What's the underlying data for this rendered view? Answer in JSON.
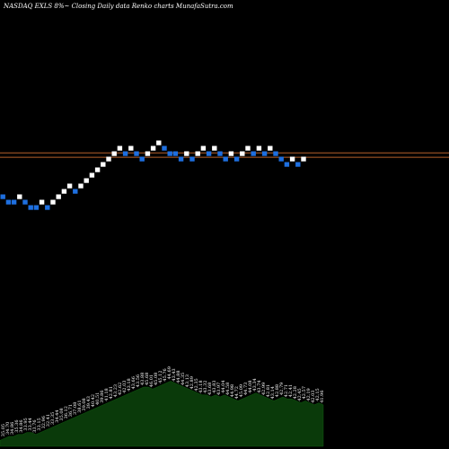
{
  "caption": "NASDAQ EXLS 8%~  Closing Daily data  Renko  charts MunafaSutra.com",
  "colors": {
    "background": "#000000",
    "up_brick": "#ffffff",
    "down_brick": "#1e6fe0",
    "reference_line": "#b5602a",
    "volume_fill": "#0a3a0a"
  },
  "chart_data": {
    "type": "renko",
    "bricks": [
      {
        "level": 0,
        "dir": "down"
      },
      {
        "level": -1,
        "dir": "down"
      },
      {
        "level": -1,
        "dir": "down"
      },
      {
        "level": 0,
        "dir": "up"
      },
      {
        "level": -1,
        "dir": "down"
      },
      {
        "level": -2,
        "dir": "down"
      },
      {
        "level": -2,
        "dir": "down"
      },
      {
        "level": -1,
        "dir": "up"
      },
      {
        "level": -2,
        "dir": "down"
      },
      {
        "level": -1,
        "dir": "up"
      },
      {
        "level": 0,
        "dir": "up"
      },
      {
        "level": 1,
        "dir": "up"
      },
      {
        "level": 2,
        "dir": "up"
      },
      {
        "level": 1,
        "dir": "down"
      },
      {
        "level": 2,
        "dir": "up"
      },
      {
        "level": 3,
        "dir": "up"
      },
      {
        "level": 4,
        "dir": "up"
      },
      {
        "level": 5,
        "dir": "up"
      },
      {
        "level": 6,
        "dir": "up"
      },
      {
        "level": 7,
        "dir": "up"
      },
      {
        "level": 8,
        "dir": "up"
      },
      {
        "level": 9,
        "dir": "up"
      },
      {
        "level": 8,
        "dir": "down"
      },
      {
        "level": 9,
        "dir": "up"
      },
      {
        "level": 8,
        "dir": "down"
      },
      {
        "level": 7,
        "dir": "down"
      },
      {
        "level": 8,
        "dir": "up"
      },
      {
        "level": 9,
        "dir": "up"
      },
      {
        "level": 10,
        "dir": "up"
      },
      {
        "level": 9,
        "dir": "down"
      },
      {
        "level": 8,
        "dir": "down"
      },
      {
        "level": 8,
        "dir": "down"
      },
      {
        "level": 7,
        "dir": "down"
      },
      {
        "level": 8,
        "dir": "up"
      },
      {
        "level": 7,
        "dir": "down"
      },
      {
        "level": 8,
        "dir": "up"
      },
      {
        "level": 9,
        "dir": "up"
      },
      {
        "level": 8,
        "dir": "down"
      },
      {
        "level": 9,
        "dir": "up"
      },
      {
        "level": 8,
        "dir": "down"
      },
      {
        "level": 7,
        "dir": "down"
      },
      {
        "level": 8,
        "dir": "up"
      },
      {
        "level": 7,
        "dir": "down"
      },
      {
        "level": 8,
        "dir": "up"
      },
      {
        "level": 9,
        "dir": "up"
      },
      {
        "level": 8,
        "dir": "down"
      },
      {
        "level": 9,
        "dir": "up"
      },
      {
        "level": 8,
        "dir": "down"
      },
      {
        "level": 9,
        "dir": "up"
      },
      {
        "level": 8,
        "dir": "down"
      },
      {
        "level": 7,
        "dir": "down"
      },
      {
        "level": 6,
        "dir": "down"
      },
      {
        "level": 7,
        "dir": "up"
      },
      {
        "level": 6,
        "dir": "down"
      },
      {
        "level": 7,
        "dir": "up"
      }
    ],
    "reference_lines": [
      8.2,
      7.4
    ],
    "volume": {
      "values": [
        3,
        4,
        5,
        5,
        6,
        6,
        7,
        7,
        6,
        7,
        8,
        9,
        10,
        11,
        12,
        13,
        14,
        15,
        16,
        17,
        18,
        19,
        20,
        21,
        22,
        23,
        24,
        25,
        26,
        27,
        28,
        29,
        30,
        30,
        29,
        30,
        31,
        32,
        33,
        32,
        31,
        30,
        29,
        28,
        27,
        26,
        26,
        25,
        26,
        25,
        26,
        25,
        24,
        23,
        24,
        25,
        26,
        27,
        26,
        25,
        24,
        23,
        24,
        25,
        24,
        24,
        23,
        22,
        23,
        22,
        21,
        22,
        21
      ],
      "labels": [
        "35.68",
        "35.05",
        "34.70",
        "34.86",
        "35.36",
        "34.86",
        "33.95",
        "33.44",
        "33.76",
        "33.15",
        "32.96",
        "32.41",
        "33.35",
        "34.44",
        "35.08",
        "36.12",
        "36.71",
        "37.08",
        "38.61",
        "39.08",
        "39.43",
        "40.42",
        "40.51",
        "39.86",
        "41.18",
        "42.81",
        "43.23",
        "42.62",
        "42.03",
        "43.18",
        "43.66",
        "43.56",
        "43.88",
        "45.68",
        "46.01",
        "45.08",
        "45.12",
        "45.76",
        "44.69",
        "43.43",
        "44.88",
        "44.35",
        "43.13",
        "42.89",
        "42.35",
        "43.18",
        "43.32",
        "43.68",
        "43.83",
        "43.97",
        "44.04",
        "44.58",
        "44.98",
        "44.72",
        "45.09",
        "44.73",
        "44.08",
        "43.34",
        "43.74",
        "42.99",
        "42.81",
        "43.14",
        "42.88",
        "42.79",
        "42.71",
        "42.41",
        "42.28",
        "42.45",
        "42.57",
        "42.19",
        "42.03",
        "42.15",
        "41.96"
      ]
    }
  }
}
